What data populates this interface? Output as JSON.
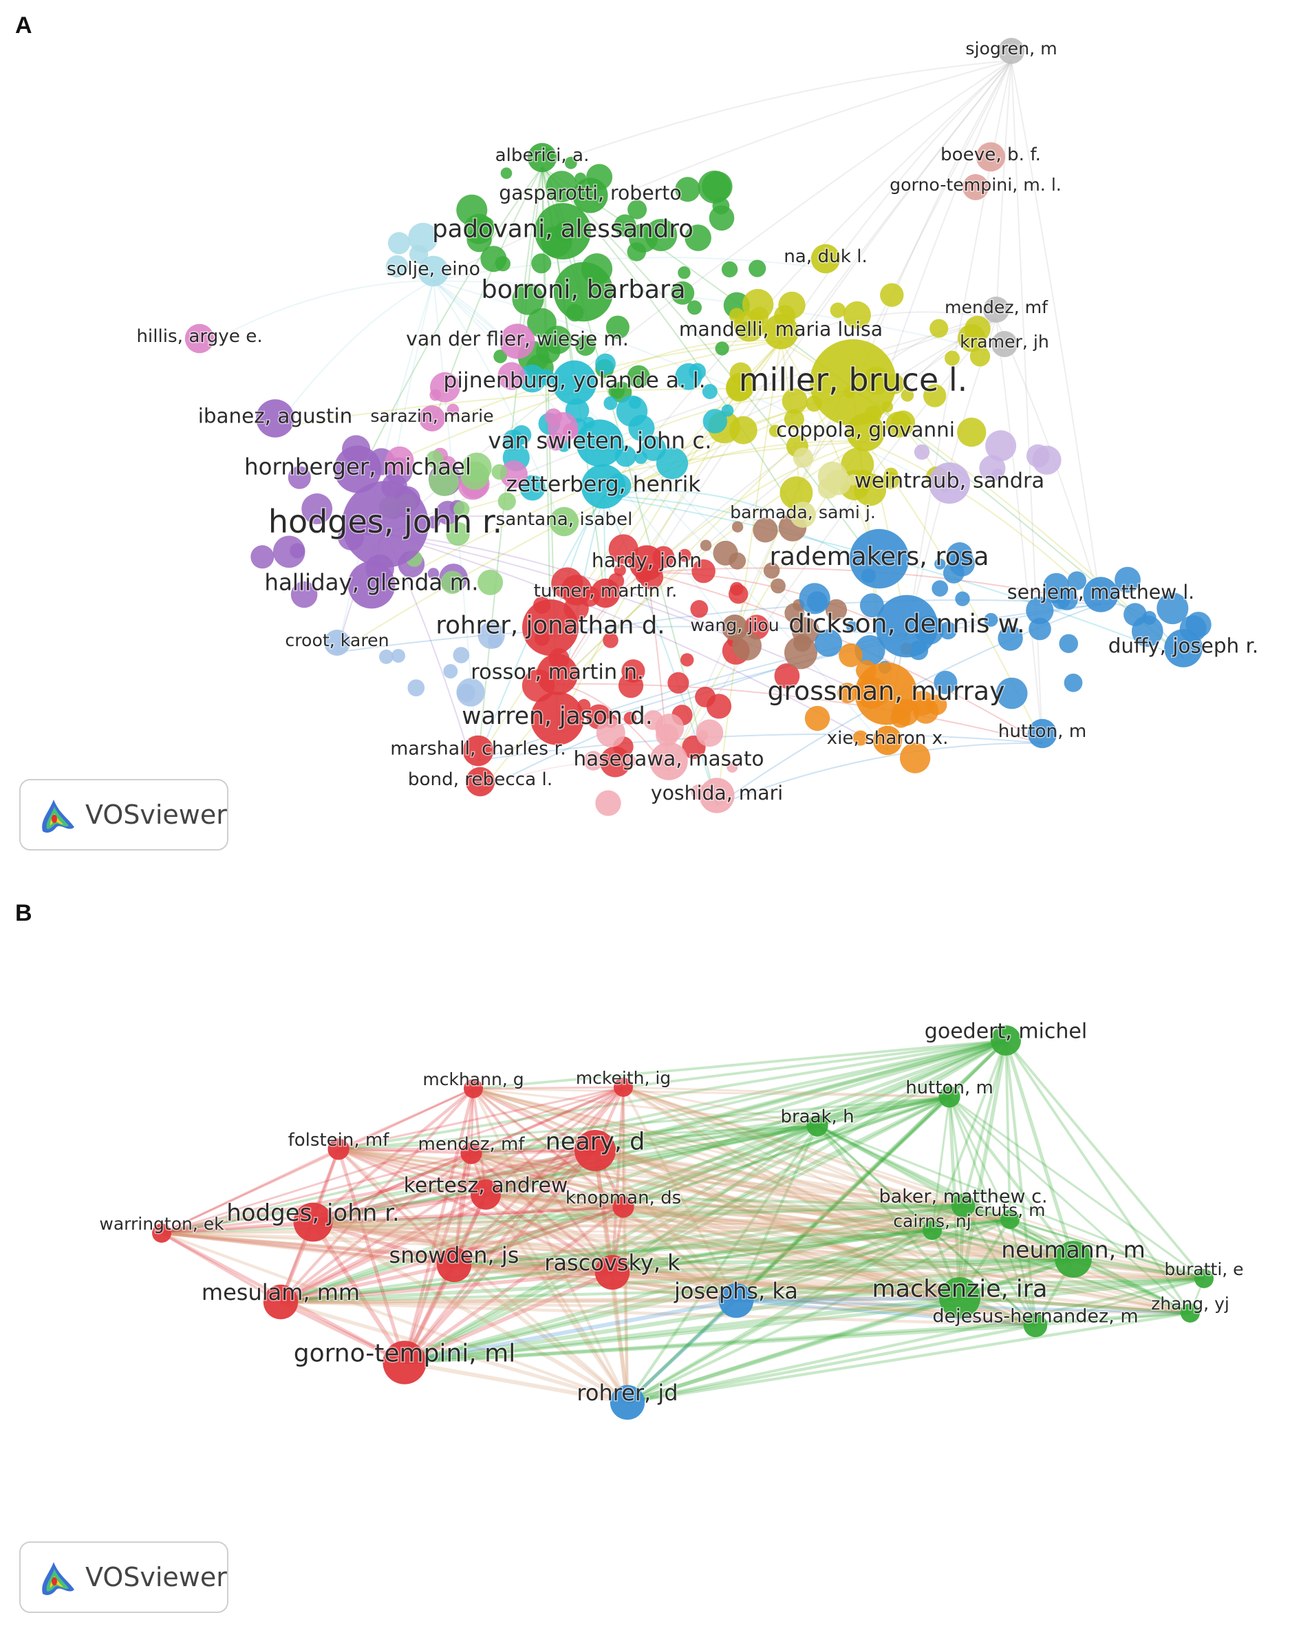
{
  "colors": {
    "red": "#e03a3e",
    "green": "#3aab3a",
    "blue": "#3b8fd4",
    "yellow": "#c5c91a",
    "purple": "#9b68c3",
    "cyan": "#24bcd0",
    "brown": "#a9775f",
    "orange": "#f08c1a",
    "pink": "#dd83c8",
    "lightgreen": "#8fd17c",
    "lightblue": "#a5c2e8",
    "lightpink": "#f2a9b3",
    "lavender": "#c8b3e3",
    "lightcyan": "#a9dbe8",
    "gray": "#bdbdbd",
    "rose": "#dfa39c",
    "khaki": "#dfe093"
  },
  "panel_a": {
    "letter": "A",
    "badge": {
      "icon": "vosviewer-logo-icon",
      "label": "VOSviewer"
    },
    "nodes": [
      {
        "label": "sjogren, m",
        "cluster": "gray",
        "weight": 1.0
      },
      {
        "label": "boeve, b. f.",
        "cluster": "rose",
        "weight": 1.2
      },
      {
        "label": "gorno-tempini, m. l.",
        "cluster": "rose",
        "weight": 1.0
      },
      {
        "label": "alberici, a.",
        "cluster": "green",
        "weight": 1.2
      },
      {
        "label": "gasparotti, roberto",
        "cluster": "green",
        "weight": 1.6
      },
      {
        "label": "padovani, alessandro",
        "cluster": "green",
        "weight": 3.0
      },
      {
        "label": "solje, eino",
        "cluster": "lightcyan",
        "weight": 1.3
      },
      {
        "label": "na, duk l.",
        "cluster": "yellow",
        "weight": 1.2
      },
      {
        "label": "borroni, barbara",
        "cluster": "green",
        "weight": 3.2
      },
      {
        "label": "mendez, mf",
        "cluster": "gray",
        "weight": 1.0
      },
      {
        "label": "hillis, argye e.",
        "cluster": "pink",
        "weight": 1.2
      },
      {
        "label": "van der flier, wiesje m.",
        "cluster": "pink",
        "weight": 1.6
      },
      {
        "label": "mandelli, maria luisa",
        "cluster": "yellow",
        "weight": 1.6
      },
      {
        "label": "kramer, jh",
        "cluster": "gray",
        "weight": 1.0
      },
      {
        "label": "pijnenburg, yolande a. l.",
        "cluster": "cyan",
        "weight": 2.2
      },
      {
        "label": "miller, bruce l.",
        "cluster": "yellow",
        "weight": 5.0
      },
      {
        "label": "ibanez, agustin",
        "cluster": "purple",
        "weight": 1.8
      },
      {
        "label": "sarazin, marie",
        "cluster": "pink",
        "weight": 1.0
      },
      {
        "label": "coppola, giovanni",
        "cluster": "yellow",
        "weight": 1.8
      },
      {
        "label": "van swieten, john c.",
        "cluster": "cyan",
        "weight": 2.4
      },
      {
        "label": "hornberger, michael",
        "cluster": "purple",
        "weight": 2.4
      },
      {
        "label": "zetterberg, henrik",
        "cluster": "cyan",
        "weight": 2.2
      },
      {
        "label": "weintraub, sandra",
        "cluster": "lavender",
        "weight": 2.0
      },
      {
        "label": "barmada, sami j.",
        "cluster": "khaki",
        "weight": 1.0
      },
      {
        "label": "hodges, john r.",
        "cluster": "purple",
        "weight": 5.0
      },
      {
        "label": "santana, isabel",
        "cluster": "lightgreen",
        "weight": 1.2
      },
      {
        "label": "rademakers, rosa",
        "cluster": "blue",
        "weight": 3.2
      },
      {
        "label": "hardy, john",
        "cluster": "red",
        "weight": 1.6
      },
      {
        "label": "halliday, glenda m.",
        "cluster": "purple",
        "weight": 2.4
      },
      {
        "label": "turner, martin r.",
        "cluster": "red",
        "weight": 1.2
      },
      {
        "label": "senjem, matthew l.",
        "cluster": "blue",
        "weight": 1.6
      },
      {
        "label": "wang, jiou",
        "cluster": "brown",
        "weight": 1.0
      },
      {
        "label": "rohrer, jonathan d.",
        "cluster": "red",
        "weight": 3.0
      },
      {
        "label": "dickson, dennis w.",
        "cluster": "blue",
        "weight": 3.4
      },
      {
        "label": "croot, karen",
        "cluster": "lightblue",
        "weight": 1.0
      },
      {
        "label": "duffy, joseph r.",
        "cluster": "blue",
        "weight": 1.8
      },
      {
        "label": "rossor, martin n.",
        "cluster": "red",
        "weight": 2.0
      },
      {
        "label": "grossman, murray",
        "cluster": "orange",
        "weight": 3.4
      },
      {
        "label": "warren, jason d.",
        "cluster": "red",
        "weight": 2.8
      },
      {
        "label": "hutton, m",
        "cluster": "blue",
        "weight": 1.2
      },
      {
        "label": "xie, sharon x.",
        "cluster": "orange",
        "weight": 1.2
      },
      {
        "label": "marshall, charles r.",
        "cluster": "red",
        "weight": 1.3
      },
      {
        "label": "hasegawa, masato",
        "cluster": "lightpink",
        "weight": 1.8
      },
      {
        "label": "bond, rebecca l.",
        "cluster": "red",
        "weight": 1.2
      },
      {
        "label": "yoshida, mari",
        "cluster": "lightpink",
        "weight": 1.6
      }
    ]
  },
  "panel_b": {
    "letter": "B",
    "badge": {
      "icon": "vosviewer-logo-icon",
      "label": "VOSviewer"
    },
    "nodes": [
      {
        "label": "goedert, michel",
        "cluster": "green",
        "weight": 2.0
      },
      {
        "label": "mckhann, g",
        "cluster": "red",
        "weight": 1.0
      },
      {
        "label": "mckeith, ig",
        "cluster": "red",
        "weight": 1.0
      },
      {
        "label": "hutton, m",
        "cluster": "green",
        "weight": 1.2
      },
      {
        "label": "braak, h",
        "cluster": "green",
        "weight": 1.2
      },
      {
        "label": "folstein, mf",
        "cluster": "red",
        "weight": 1.2
      },
      {
        "label": "mendez, mf",
        "cluster": "red",
        "weight": 1.2
      },
      {
        "label": "neary, d",
        "cluster": "red",
        "weight": 3.0
      },
      {
        "label": "baker, matthew c.",
        "cluster": "green",
        "weight": 1.4
      },
      {
        "label": "kertesz, andrew",
        "cluster": "red",
        "weight": 2.0
      },
      {
        "label": "knopman, ds",
        "cluster": "red",
        "weight": 1.2
      },
      {
        "label": "hodges, john r.",
        "cluster": "red",
        "weight": 2.8
      },
      {
        "label": "warrington, ek",
        "cluster": "red",
        "weight": 1.0
      },
      {
        "label": "cruts, m",
        "cluster": "green",
        "weight": 1.0
      },
      {
        "label": "cairns, nj",
        "cluster": "green",
        "weight": 1.0
      },
      {
        "label": "neumann, m",
        "cluster": "green",
        "weight": 2.6
      },
      {
        "label": "snowden, js",
        "cluster": "red",
        "weight": 2.4
      },
      {
        "label": "rascovsky, k",
        "cluster": "red",
        "weight": 2.4
      },
      {
        "label": "buratti, e",
        "cluster": "green",
        "weight": 1.0
      },
      {
        "label": "mesulam, mm",
        "cluster": "red",
        "weight": 2.4
      },
      {
        "label": "josephs, ka",
        "cluster": "blue",
        "weight": 2.4
      },
      {
        "label": "mackenzie, ira",
        "cluster": "green",
        "weight": 3.0
      },
      {
        "label": "zhang, yj",
        "cluster": "green",
        "weight": 1.0
      },
      {
        "label": "dejesus-hernandez, m",
        "cluster": "green",
        "weight": 1.4
      },
      {
        "label": "gorno-tempini, ml",
        "cluster": "red",
        "weight": 3.2
      },
      {
        "label": "rohrer, jd",
        "cluster": "blue",
        "weight": 2.4
      }
    ]
  }
}
